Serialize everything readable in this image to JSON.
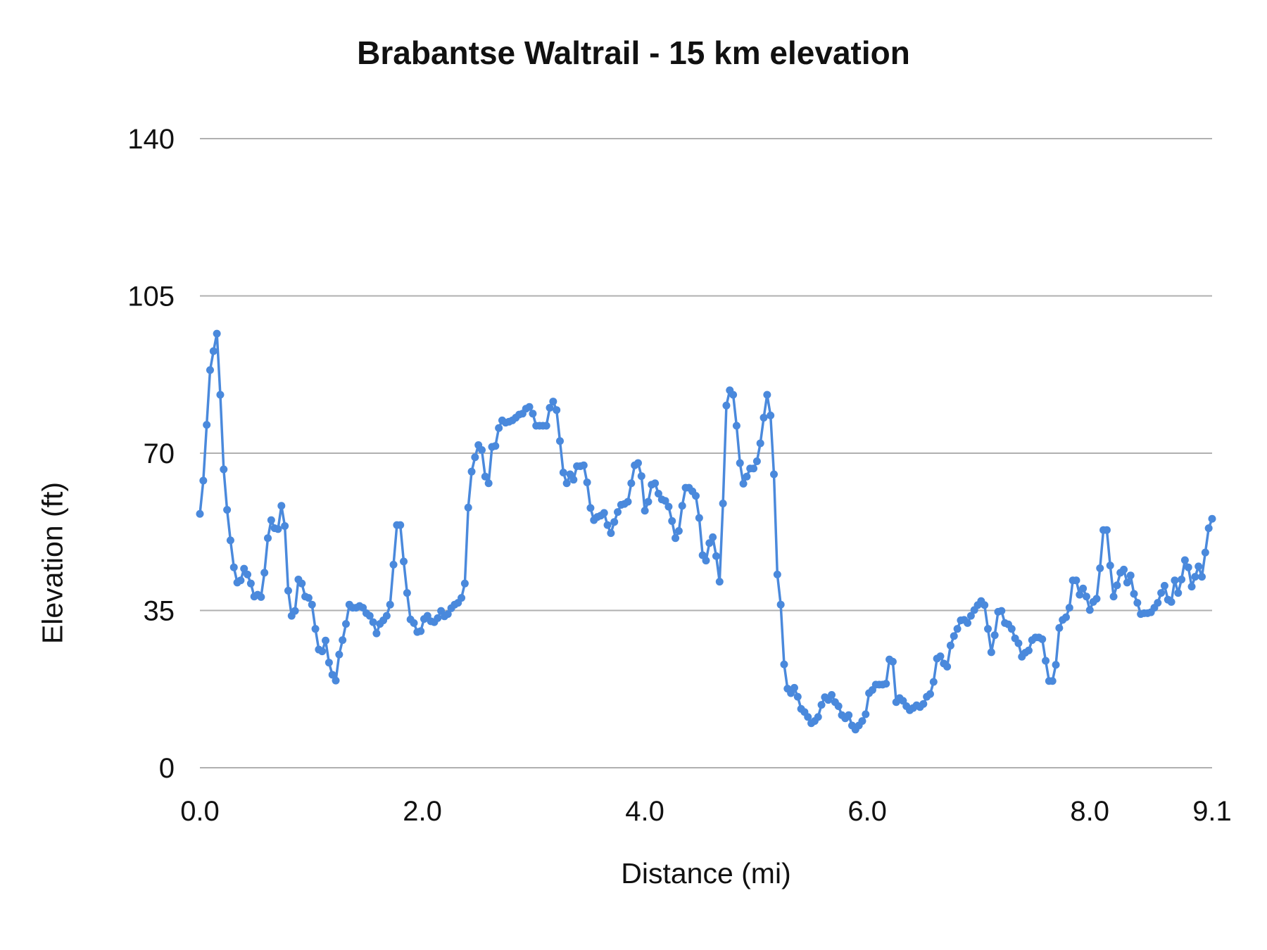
{
  "chart_data": {
    "type": "line",
    "title": "Brabantse Waltrail - 15 km elevation",
    "xlabel": "Distance (mi)",
    "ylabel": "Elevation (ft)",
    "xlim": [
      0,
      9.1
    ],
    "ylim": [
      0,
      140
    ],
    "x_ticks": [
      "0.0",
      "2.0",
      "4.0",
      "6.0",
      "8.0",
      "9.1"
    ],
    "x_tick_values": [
      0,
      2,
      4,
      6,
      8,
      9.1
    ],
    "y_ticks": [
      "0",
      "35",
      "70",
      "105",
      "140"
    ],
    "y_tick_values": [
      0,
      35,
      70,
      105,
      140
    ],
    "grid": "horizontal",
    "legend": "none",
    "x_spacing": "evenly spaced from 0.0 to 9.1",
    "series": [
      {
        "color": "#4a89dc",
        "markers": true,
        "values": [
          56.5,
          63.9,
          76.3,
          88.5,
          92.7,
          96.6,
          83.0,
          66.4,
          57.4,
          50.6,
          44.6,
          41.2,
          41.7,
          44.3,
          43.0,
          41.0,
          38.1,
          38.5,
          38.0,
          43.4,
          51.1,
          55.1,
          53.3,
          53.1,
          58.3,
          53.8,
          39.4,
          33.8,
          34.9,
          41.9,
          41.0,
          38.1,
          37.8,
          36.3,
          30.9,
          26.3,
          25.9,
          28.3,
          23.4,
          20.7,
          19.4,
          25.2,
          28.4,
          32.0,
          36.3,
          35.6,
          35.6,
          36.0,
          35.6,
          34.4,
          33.8,
          32.4,
          29.9,
          32.0,
          32.8,
          33.8,
          36.3,
          45.2,
          54.0,
          54.0,
          45.9,
          38.9,
          33.0,
          32.2,
          30.2,
          30.4,
          33.1,
          33.8,
          32.6,
          32.4,
          33.3,
          34.9,
          33.7,
          34.2,
          35.5,
          36.3,
          36.7,
          37.8,
          41.0,
          57.9,
          65.9,
          69.1,
          71.8,
          70.7,
          64.8,
          63.3,
          71.4,
          71.6,
          75.6,
          77.3,
          76.8,
          77.0,
          77.3,
          77.9,
          78.6,
          78.8,
          79.9,
          80.3,
          78.8,
          76.1,
          76.1,
          76.1,
          76.1,
          80.1,
          81.5,
          79.6,
          72.7,
          65.7,
          63.3,
          65.3,
          64.1,
          67.1,
          67.1,
          67.3,
          63.5,
          57.8,
          55.1,
          55.8,
          56.1,
          56.7,
          54.0,
          52.2,
          54.7,
          56.9,
          58.5,
          58.7,
          59.2,
          63.3,
          67.3,
          67.8,
          64.9,
          57.2,
          59.2,
          63.0,
          63.3,
          61.0,
          59.7,
          59.4,
          58.1,
          54.9,
          51.1,
          52.7,
          58.3,
          62.3,
          62.3,
          61.5,
          60.5,
          55.6,
          47.3,
          46.1,
          50.0,
          51.3,
          47.1,
          41.4,
          58.8,
          80.6,
          84.0,
          83.0,
          76.1,
          67.8,
          63.2,
          64.8,
          66.6,
          66.6,
          68.2,
          72.2,
          77.9,
          83.0,
          78.4,
          65.3,
          43.0,
          36.3,
          23.0,
          17.6,
          16.6,
          17.8,
          15.8,
          13.1,
          12.4,
          11.3,
          9.9,
          10.4,
          11.3,
          14.0,
          15.7,
          15.1,
          16.2,
          14.6,
          13.7,
          11.7,
          11.0,
          11.7,
          9.4,
          8.5,
          9.4,
          10.4,
          11.9,
          16.6,
          17.3,
          18.5,
          18.5,
          18.5,
          18.7,
          24.1,
          23.6,
          14.6,
          15.5,
          14.9,
          13.7,
          12.8,
          13.3,
          13.9,
          13.5,
          14.2,
          15.8,
          16.4,
          19.1,
          24.3,
          24.8,
          23.2,
          22.5,
          27.2,
          29.3,
          30.9,
          32.8,
          32.9,
          32.2,
          33.8,
          35.1,
          36.2,
          37.1,
          36.2,
          30.9,
          25.7,
          29.5,
          34.7,
          34.9,
          32.2,
          31.9,
          30.9,
          28.8,
          27.7,
          24.7,
          25.6,
          26.1,
          28.4,
          29.0,
          29.0,
          28.6,
          23.8,
          19.3,
          19.3,
          22.9,
          31.1,
          32.9,
          33.5,
          35.6,
          41.7,
          41.7,
          38.5,
          39.9,
          38.1,
          35.1,
          36.9,
          37.6,
          44.4,
          52.9,
          52.9,
          45.0,
          38.1,
          40.6,
          43.4,
          44.1,
          41.2,
          42.8,
          38.7,
          36.7,
          34.2,
          34.4,
          34.4,
          34.6,
          35.6,
          36.7,
          38.9,
          40.5,
          37.4,
          36.9,
          41.7,
          38.9,
          41.9,
          46.2,
          44.6,
          40.3,
          42.5,
          44.8,
          42.5,
          47.9,
          53.3,
          55.4
        ]
      }
    ]
  }
}
